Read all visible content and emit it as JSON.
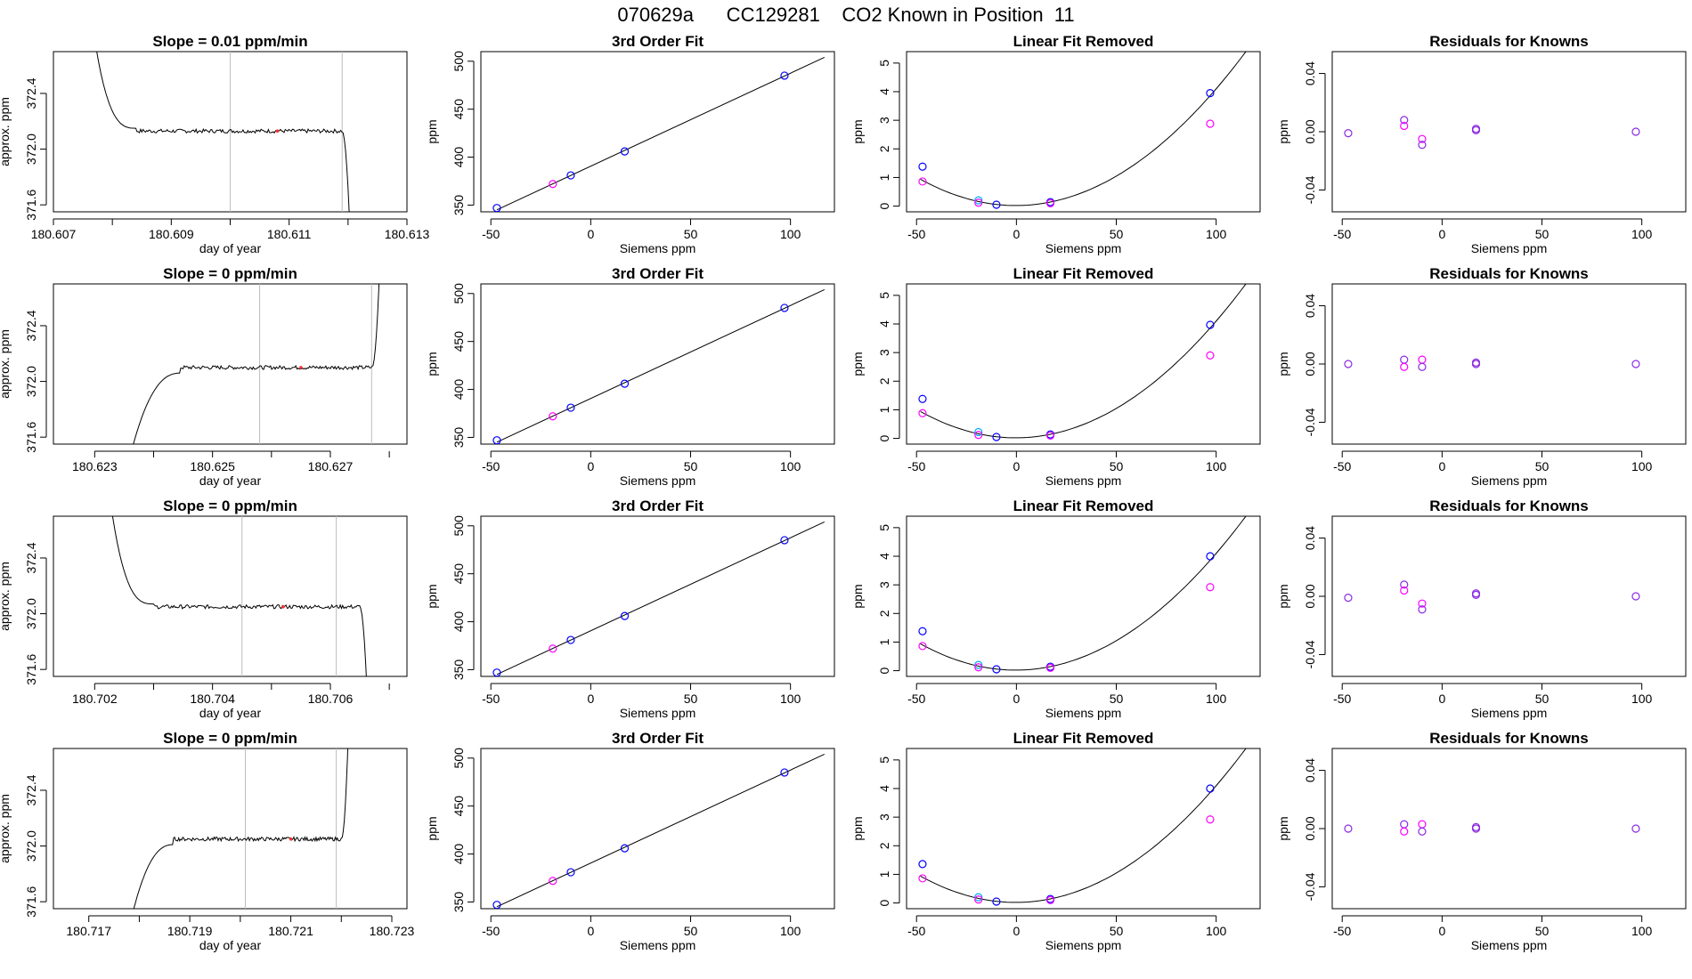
{
  "page_title": "070629a      CC129281    CO2 Known in Position  11",
  "colors": {
    "line": "#000000",
    "vline": "#bebebe",
    "blue": "#0000ff",
    "magenta": "#ff00ff",
    "cyan": "#00aaff",
    "purple": "#8a2be2"
  },
  "chart_data": [
    {
      "type": "line",
      "row": 0,
      "col": 0,
      "title": "Slope =  0.01  ppm/min",
      "xlabel": "day of year",
      "ylabel": "approx. ppm",
      "xlim": [
        180.607,
        180.613
      ],
      "ylim": [
        371.55,
        372.7
      ],
      "xticks": [
        180.607,
        180.609,
        180.611,
        180.613
      ],
      "xticklabels": [
        "180.607",
        "180.609",
        "180.611",
        "180.613"
      ],
      "xminor": [
        180.608,
        180.61,
        180.612
      ],
      "yticks": [
        371.6,
        372.0,
        372.4
      ],
      "yticklabels": [
        "371.6",
        "372.0",
        "372.4"
      ],
      "vlines": [
        180.61,
        180.6119
      ],
      "shape": "fall",
      "x_start": 180.6076,
      "x_end": 180.6121,
      "level": 372.13,
      "red_at": 180.6108
    },
    {
      "type": "scatter",
      "row": 0,
      "col": 1,
      "title": "3rd Order Fit",
      "xlabel": "Siemens ppm",
      "ylabel": "ppm",
      "xlim": [
        -55,
        122
      ],
      "ylim": [
        343,
        510
      ],
      "xticks": [
        -50,
        0,
        50,
        100
      ],
      "xticklabels": [
        "-50",
        "0",
        "50",
        "100"
      ],
      "yticks": [
        350,
        400,
        450,
        500
      ],
      "yticklabels": [
        "350",
        "400",
        "450",
        "500"
      ],
      "fit": {
        "kind": "linear",
        "x": [
          -47,
          117
        ],
        "y": [
          345,
          504
        ]
      },
      "points": [
        {
          "x": -47,
          "y": 347,
          "c": "blue"
        },
        {
          "x": -19,
          "y": 372,
          "c": "magenta"
        },
        {
          "x": -10,
          "y": 381,
          "c": "blue"
        },
        {
          "x": 17,
          "y": 406,
          "c": "blue"
        },
        {
          "x": 97,
          "y": 485,
          "c": "blue"
        }
      ]
    },
    {
      "type": "scatter",
      "row": 0,
      "col": 2,
      "title": "Linear Fit Removed",
      "xlabel": "Siemens ppm",
      "ylabel": "ppm",
      "xlim": [
        -55,
        122
      ],
      "ylim": [
        -0.2,
        5.4
      ],
      "xticks": [
        -50,
        0,
        50,
        100
      ],
      "xticklabels": [
        "-50",
        "0",
        "50",
        "100"
      ],
      "yticks": [
        0,
        1,
        2,
        3,
        4,
        5
      ],
      "yticklabels": [
        "0",
        "1",
        "2",
        "3",
        "4",
        "5"
      ],
      "fit": {
        "kind": "quad",
        "a": 0.000405,
        "b": 0.0003,
        "c": 0.02,
        "x0": -48,
        "x1": 117
      },
      "points": [
        {
          "x": -47,
          "y": 1.38,
          "c": "blue"
        },
        {
          "x": -47,
          "y": 0.86,
          "c": "magenta"
        },
        {
          "x": -19,
          "y": 0.2,
          "c": "cyan"
        },
        {
          "x": -19,
          "y": 0.12,
          "c": "magenta"
        },
        {
          "x": -10,
          "y": 0.05,
          "c": "blue"
        },
        {
          "x": 17,
          "y": 0.14,
          "c": "blue"
        },
        {
          "x": 17,
          "y": 0.1,
          "c": "magenta"
        },
        {
          "x": 97,
          "y": 3.95,
          "c": "blue"
        },
        {
          "x": 97,
          "y": 2.88,
          "c": "magenta"
        }
      ]
    },
    {
      "type": "scatter",
      "row": 0,
      "col": 3,
      "title": "Residuals for Knowns",
      "xlabel": "Siemens ppm",
      "ylabel": "ppm",
      "xlim": [
        -55,
        122
      ],
      "ylim": [
        -0.055,
        0.055
      ],
      "xticks": [
        -50,
        0,
        50,
        100
      ],
      "xticklabels": [
        "-50",
        "0",
        "50",
        "100"
      ],
      "yticks": [
        -0.04,
        0.0,
        0.04
      ],
      "yticklabels": [
        "-0.04",
        "0.00",
        "0.04"
      ],
      "points": [
        {
          "x": -47,
          "y": -0.001,
          "c": "purple"
        },
        {
          "x": -19,
          "y": 0.008,
          "c": "purple"
        },
        {
          "x": -19,
          "y": 0.004,
          "c": "magenta"
        },
        {
          "x": -10,
          "y": -0.005,
          "c": "magenta"
        },
        {
          "x": -10,
          "y": -0.009,
          "c": "purple"
        },
        {
          "x": 17,
          "y": 0.001,
          "c": "purple"
        },
        {
          "x": 17,
          "y": 0.002,
          "c": "purple"
        },
        {
          "x": 97,
          "y": 0.0,
          "c": "purple"
        }
      ]
    },
    {
      "type": "line",
      "row": 1,
      "col": 0,
      "title": "Slope =  0  ppm/min",
      "xlabel": "day of year",
      "ylabel": "approx. ppm",
      "xlim": [
        180.6223,
        180.6283
      ],
      "ylim": [
        371.55,
        372.7
      ],
      "xticks": [
        180.623,
        180.625,
        180.627
      ],
      "xticklabels": [
        "180.623",
        "180.625",
        "180.627"
      ],
      "xminor": [
        180.624,
        180.626,
        180.628
      ],
      "yticks": [
        371.6,
        372.0,
        372.4
      ],
      "yticklabels": [
        "371.6",
        "372.0",
        "372.4"
      ],
      "vlines": [
        180.6258,
        180.6277
      ],
      "shape": "rise",
      "x_start": 180.6236,
      "x_end": 180.6279,
      "level": 372.1,
      "red_at": 180.6265
    },
    {
      "type": "scatter",
      "row": 1,
      "col": 1,
      "title": "3rd Order Fit",
      "xlabel": "Siemens ppm",
      "ylabel": "ppm",
      "xlim": [
        -55,
        122
      ],
      "ylim": [
        343,
        510
      ],
      "xticks": [
        -50,
        0,
        50,
        100
      ],
      "xticklabels": [
        "-50",
        "0",
        "50",
        "100"
      ],
      "yticks": [
        350,
        400,
        450,
        500
      ],
      "yticklabels": [
        "350",
        "400",
        "450",
        "500"
      ],
      "fit": {
        "kind": "linear",
        "x": [
          -47,
          117
        ],
        "y": [
          345,
          504
        ]
      },
      "points": [
        {
          "x": -47,
          "y": 347,
          "c": "blue"
        },
        {
          "x": -19,
          "y": 372,
          "c": "magenta"
        },
        {
          "x": -10,
          "y": 381,
          "c": "blue"
        },
        {
          "x": 17,
          "y": 406,
          "c": "blue"
        },
        {
          "x": 97,
          "y": 485,
          "c": "blue"
        }
      ]
    },
    {
      "type": "scatter",
      "row": 1,
      "col": 2,
      "title": "Linear Fit Removed",
      "xlabel": "Siemens ppm",
      "ylabel": "ppm",
      "xlim": [
        -55,
        122
      ],
      "ylim": [
        -0.2,
        5.4
      ],
      "xticks": [
        -50,
        0,
        50,
        100
      ],
      "xticklabels": [
        "-50",
        "0",
        "50",
        "100"
      ],
      "yticks": [
        0,
        1,
        2,
        3,
        4,
        5
      ],
      "yticklabels": [
        "0",
        "1",
        "2",
        "3",
        "4",
        "5"
      ],
      "fit": {
        "kind": "quad",
        "a": 0.000405,
        "b": 0.0003,
        "c": 0.02,
        "x0": -48,
        "x1": 117
      },
      "points": [
        {
          "x": -47,
          "y": 1.38,
          "c": "blue"
        },
        {
          "x": -47,
          "y": 0.88,
          "c": "magenta"
        },
        {
          "x": -19,
          "y": 0.22,
          "c": "cyan"
        },
        {
          "x": -19,
          "y": 0.12,
          "c": "magenta"
        },
        {
          "x": -10,
          "y": 0.05,
          "c": "blue"
        },
        {
          "x": 17,
          "y": 0.14,
          "c": "blue"
        },
        {
          "x": 17,
          "y": 0.1,
          "c": "magenta"
        },
        {
          "x": 97,
          "y": 3.97,
          "c": "blue"
        },
        {
          "x": 97,
          "y": 2.9,
          "c": "magenta"
        }
      ]
    },
    {
      "type": "scatter",
      "row": 1,
      "col": 3,
      "title": "Residuals for Knowns",
      "xlabel": "Siemens ppm",
      "ylabel": "ppm",
      "xlim": [
        -55,
        122
      ],
      "ylim": [
        -0.055,
        0.055
      ],
      "xticks": [
        -50,
        0,
        50,
        100
      ],
      "xticklabels": [
        "-50",
        "0",
        "50",
        "100"
      ],
      "yticks": [
        -0.04,
        0.0,
        0.04
      ],
      "yticklabels": [
        "-0.04",
        "0.00",
        "0.04"
      ],
      "points": [
        {
          "x": -47,
          "y": 0.0,
          "c": "purple"
        },
        {
          "x": -19,
          "y": 0.003,
          "c": "purple"
        },
        {
          "x": -19,
          "y": -0.002,
          "c": "magenta"
        },
        {
          "x": -10,
          "y": 0.003,
          "c": "magenta"
        },
        {
          "x": -10,
          "y": -0.002,
          "c": "purple"
        },
        {
          "x": 17,
          "y": 0.0,
          "c": "purple"
        },
        {
          "x": 17,
          "y": 0.001,
          "c": "purple"
        },
        {
          "x": 97,
          "y": 0.0,
          "c": "purple"
        }
      ]
    },
    {
      "type": "line",
      "row": 2,
      "col": 0,
      "title": "Slope =  0  ppm/min",
      "xlabel": "day of year",
      "ylabel": "approx. ppm",
      "xlim": [
        180.7013,
        180.7073
      ],
      "ylim": [
        371.55,
        372.7
      ],
      "xticks": [
        180.702,
        180.704,
        180.706
      ],
      "xticklabels": [
        "180.702",
        "180.704",
        "180.706"
      ],
      "xminor": [
        180.703,
        180.705,
        180.707
      ],
      "yticks": [
        371.6,
        372.0,
        372.4
      ],
      "yticklabels": [
        "371.6",
        "372.0",
        "372.4"
      ],
      "vlines": [
        180.7045,
        180.7061
      ],
      "shape": "fall",
      "x_start": 180.7022,
      "x_end": 180.7067,
      "level": 372.05,
      "red_at": 180.7052
    },
    {
      "type": "scatter",
      "row": 2,
      "col": 1,
      "title": "3rd Order Fit",
      "xlabel": "Siemens ppm",
      "ylabel": "ppm",
      "xlim": [
        -55,
        122
      ],
      "ylim": [
        343,
        510
      ],
      "xticks": [
        -50,
        0,
        50,
        100
      ],
      "xticklabels": [
        "-50",
        "0",
        "50",
        "100"
      ],
      "yticks": [
        350,
        400,
        450,
        500
      ],
      "yticklabels": [
        "350",
        "400",
        "450",
        "500"
      ],
      "fit": {
        "kind": "linear",
        "x": [
          -47,
          117
        ],
        "y": [
          345,
          504
        ]
      },
      "points": [
        {
          "x": -47,
          "y": 347,
          "c": "blue"
        },
        {
          "x": -19,
          "y": 372,
          "c": "magenta"
        },
        {
          "x": -10,
          "y": 381,
          "c": "blue"
        },
        {
          "x": 17,
          "y": 406,
          "c": "blue"
        },
        {
          "x": 97,
          "y": 485,
          "c": "blue"
        }
      ]
    },
    {
      "type": "scatter",
      "row": 2,
      "col": 2,
      "title": "Linear Fit Removed",
      "xlabel": "Siemens ppm",
      "ylabel": "ppm",
      "xlim": [
        -55,
        122
      ],
      "ylim": [
        -0.2,
        5.4
      ],
      "xticks": [
        -50,
        0,
        50,
        100
      ],
      "xticklabels": [
        "-50",
        "0",
        "50",
        "100"
      ],
      "yticks": [
        0,
        1,
        2,
        3,
        4,
        5
      ],
      "yticklabels": [
        "0",
        "1",
        "2",
        "3",
        "4",
        "5"
      ],
      "fit": {
        "kind": "quad",
        "a": 0.000405,
        "b": 0.0003,
        "c": 0.02,
        "x0": -48,
        "x1": 117
      },
      "points": [
        {
          "x": -47,
          "y": 1.38,
          "c": "blue"
        },
        {
          "x": -47,
          "y": 0.86,
          "c": "magenta"
        },
        {
          "x": -19,
          "y": 0.2,
          "c": "cyan"
        },
        {
          "x": -19,
          "y": 0.12,
          "c": "magenta"
        },
        {
          "x": -10,
          "y": 0.05,
          "c": "blue"
        },
        {
          "x": 17,
          "y": 0.14,
          "c": "blue"
        },
        {
          "x": 17,
          "y": 0.1,
          "c": "magenta"
        },
        {
          "x": 97,
          "y": 4.0,
          "c": "blue"
        },
        {
          "x": 97,
          "y": 2.92,
          "c": "magenta"
        }
      ]
    },
    {
      "type": "scatter",
      "row": 2,
      "col": 3,
      "title": "Residuals for Knowns",
      "xlabel": "Siemens ppm",
      "ylabel": "ppm",
      "xlim": [
        -55,
        122
      ],
      "ylim": [
        -0.055,
        0.055
      ],
      "xticks": [
        -50,
        0,
        50,
        100
      ],
      "xticklabels": [
        "-50",
        "0",
        "50",
        "100"
      ],
      "yticks": [
        -0.04,
        0.0,
        0.04
      ],
      "yticklabels": [
        "-0.04",
        "0.00",
        "0.04"
      ],
      "points": [
        {
          "x": -47,
          "y": -0.001,
          "c": "purple"
        },
        {
          "x": -19,
          "y": 0.008,
          "c": "purple"
        },
        {
          "x": -19,
          "y": 0.004,
          "c": "magenta"
        },
        {
          "x": -10,
          "y": -0.005,
          "c": "magenta"
        },
        {
          "x": -10,
          "y": -0.009,
          "c": "purple"
        },
        {
          "x": 17,
          "y": 0.002,
          "c": "purple"
        },
        {
          "x": 17,
          "y": 0.001,
          "c": "purple"
        },
        {
          "x": 97,
          "y": 0.0,
          "c": "purple"
        }
      ]
    },
    {
      "type": "line",
      "row": 3,
      "col": 0,
      "title": "Slope =  0  ppm/min",
      "xlabel": "day of year",
      "ylabel": "approx. ppm",
      "xlim": [
        180.7163,
        180.7233
      ],
      "ylim": [
        371.55,
        372.7
      ],
      "xticks": [
        180.717,
        180.719,
        180.721,
        180.723
      ],
      "xticklabels": [
        "180.717",
        "180.719",
        "180.721",
        "180.723"
      ],
      "xminor": [
        180.718,
        180.72,
        180.722
      ],
      "yticks": [
        371.6,
        372.0,
        372.4
      ],
      "yticklabels": [
        "371.6",
        "372.0",
        "372.4"
      ],
      "vlines": [
        180.7201,
        180.7219
      ],
      "shape": "rise",
      "x_start": 180.7178,
      "x_end": 180.7222,
      "level": 372.05,
      "red_at": 180.721
    },
    {
      "type": "scatter",
      "row": 3,
      "col": 1,
      "title": "3rd Order Fit",
      "xlabel": "Siemens ppm",
      "ylabel": "ppm",
      "xlim": [
        -55,
        122
      ],
      "ylim": [
        343,
        510
      ],
      "xticks": [
        -50,
        0,
        50,
        100
      ],
      "xticklabels": [
        "-50",
        "0",
        "50",
        "100"
      ],
      "yticks": [
        350,
        400,
        450,
        500
      ],
      "yticklabels": [
        "350",
        "400",
        "450",
        "500"
      ],
      "fit": {
        "kind": "linear",
        "x": [
          -47,
          117
        ],
        "y": [
          345,
          504
        ]
      },
      "points": [
        {
          "x": -47,
          "y": 347,
          "c": "blue"
        },
        {
          "x": -19,
          "y": 372,
          "c": "magenta"
        },
        {
          "x": -10,
          "y": 381,
          "c": "blue"
        },
        {
          "x": 17,
          "y": 406,
          "c": "blue"
        },
        {
          "x": 97,
          "y": 485,
          "c": "blue"
        }
      ]
    },
    {
      "type": "scatter",
      "row": 3,
      "col": 2,
      "title": "Linear Fit Removed",
      "xlabel": "Siemens ppm",
      "ylabel": "ppm",
      "xlim": [
        -55,
        122
      ],
      "ylim": [
        -0.2,
        5.4
      ],
      "xticks": [
        -50,
        0,
        50,
        100
      ],
      "xticklabels": [
        "-50",
        "0",
        "50",
        "100"
      ],
      "yticks": [
        0,
        1,
        2,
        3,
        4,
        5
      ],
      "yticklabels": [
        "0",
        "1",
        "2",
        "3",
        "4",
        "5"
      ],
      "fit": {
        "kind": "quad",
        "a": 0.000405,
        "b": 0.0003,
        "c": 0.02,
        "x0": -48,
        "x1": 117
      },
      "points": [
        {
          "x": -47,
          "y": 1.36,
          "c": "blue"
        },
        {
          "x": -47,
          "y": 0.86,
          "c": "magenta"
        },
        {
          "x": -19,
          "y": 0.2,
          "c": "cyan"
        },
        {
          "x": -19,
          "y": 0.12,
          "c": "magenta"
        },
        {
          "x": -10,
          "y": 0.05,
          "c": "blue"
        },
        {
          "x": 17,
          "y": 0.14,
          "c": "blue"
        },
        {
          "x": 17,
          "y": 0.1,
          "c": "magenta"
        },
        {
          "x": 97,
          "y": 4.0,
          "c": "blue"
        },
        {
          "x": 97,
          "y": 2.92,
          "c": "magenta"
        }
      ]
    },
    {
      "type": "scatter",
      "row": 3,
      "col": 3,
      "title": "Residuals for Knowns",
      "xlabel": "Siemens ppm",
      "ylabel": "ppm",
      "xlim": [
        -55,
        122
      ],
      "ylim": [
        -0.055,
        0.055
      ],
      "xticks": [
        -50,
        0,
        50,
        100
      ],
      "xticklabels": [
        "-50",
        "0",
        "50",
        "100"
      ],
      "yticks": [
        -0.04,
        0.0,
        0.04
      ],
      "yticklabels": [
        "-0.04",
        "0.00",
        "0.04"
      ],
      "points": [
        {
          "x": -47,
          "y": 0.0,
          "c": "purple"
        },
        {
          "x": -19,
          "y": 0.003,
          "c": "purple"
        },
        {
          "x": -19,
          "y": -0.002,
          "c": "magenta"
        },
        {
          "x": -10,
          "y": 0.003,
          "c": "magenta"
        },
        {
          "x": -10,
          "y": -0.002,
          "c": "purple"
        },
        {
          "x": 17,
          "y": 0.0,
          "c": "purple"
        },
        {
          "x": 17,
          "y": 0.001,
          "c": "purple"
        },
        {
          "x": 97,
          "y": 0.0,
          "c": "purple"
        }
      ]
    }
  ]
}
